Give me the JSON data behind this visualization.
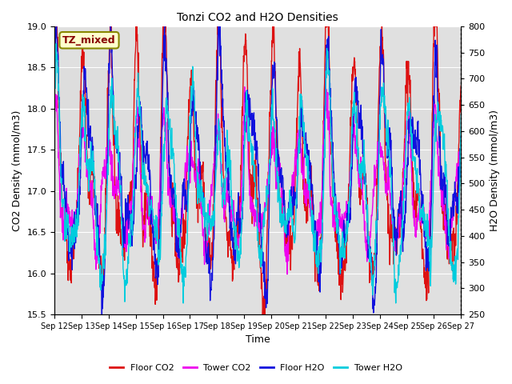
{
  "title": "Tonzi CO2 and H2O Densities",
  "xlabel": "Time",
  "ylabel_left": "CO2 Density (mmol/m3)",
  "ylabel_right": "H2O Density (mmol/m3)",
  "annotation_text": "TZ_mixed",
  "annotation_bg": "#FFFFCC",
  "annotation_border": "#888800",
  "annotation_color": "#880000",
  "xlim_days": [
    12,
    27
  ],
  "ylim_co2": [
    15.5,
    19.0
  ],
  "ylim_h2o": [
    250,
    800
  ],
  "yticks_co2": [
    15.5,
    16.0,
    16.5,
    17.0,
    17.5,
    18.0,
    18.5,
    19.0
  ],
  "yticks_h2o": [
    250,
    300,
    350,
    400,
    450,
    500,
    550,
    600,
    650,
    700,
    750,
    800
  ],
  "xtick_labels": [
    "Sep 12",
    "Sep 13",
    "Sep 14",
    "Sep 15",
    "Sep 16",
    "Sep 17",
    "Sep 18",
    "Sep 19",
    "Sep 20",
    "Sep 21",
    "Sep 22",
    "Sep 23",
    "Sep 24",
    "Sep 25",
    "Sep 26",
    "Sep 27"
  ],
  "colors": {
    "floor_co2": "#DD1111",
    "tower_co2": "#EE00EE",
    "floor_h2o": "#1111DD",
    "tower_h2o": "#00CCDD"
  },
  "legend_labels": [
    "Floor CO2",
    "Tower CO2",
    "Floor H2O",
    "Tower H2O"
  ],
  "shaded_band": [
    17.5,
    18.5
  ],
  "shaded_color": "#DDDDDD",
  "background_color": "#E0E0E0",
  "grid_color": "#FFFFFF",
  "fig_bg": "#FFFFFF"
}
